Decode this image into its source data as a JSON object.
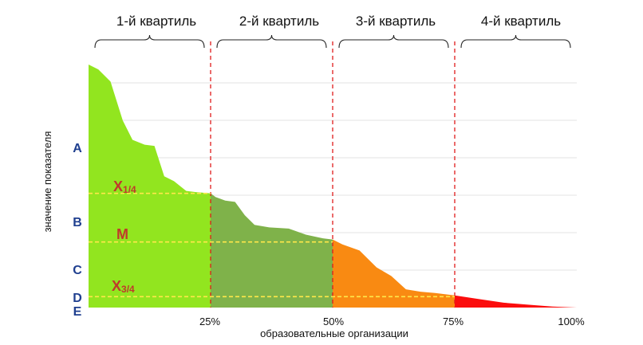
{
  "chart_data": {
    "type": "area",
    "quartile_labels": [
      "1-й квартиль",
      "2-й  квартиль",
      "3-й квартиль",
      "4-й квартиль"
    ],
    "xlabel": "образовательные организации",
    "ylabel": "значение показателя",
    "x_ticks": [
      "25%",
      "50%",
      "75%",
      "100%"
    ],
    "xlim": [
      0,
      100
    ],
    "ylim": [
      0,
      100
    ],
    "grid": true,
    "grades": [
      "A",
      "B",
      "C",
      "D",
      "E"
    ],
    "grade_levels": [
      65,
      35,
      15,
      4,
      0
    ],
    "quartile_markers": [
      {
        "main": "X",
        "sub": "1/4",
        "y": 47
      },
      {
        "main": "M",
        "sub": "",
        "y": 27
      },
      {
        "main": "X",
        "sub": "3/4",
        "y": 4.5
      }
    ],
    "segments": [
      {
        "color": "#92e51f",
        "x": [
          0,
          2,
          4.5,
          7,
          9,
          11.5,
          13.5,
          15.5,
          17.5,
          20,
          22,
          25
        ],
        "y": [
          100,
          98,
          93,
          77,
          69,
          67,
          66.5,
          54,
          52,
          48,
          47.5,
          47
        ]
      },
      {
        "color": "#7fb24a",
        "x": [
          25,
          26,
          28,
          30,
          32,
          34,
          37,
          41,
          44.5,
          48,
          50
        ],
        "y": [
          47,
          45.5,
          44,
          43.5,
          38,
          34,
          33,
          32.5,
          30,
          28.5,
          28
        ]
      },
      {
        "color": "#f98a12",
        "x": [
          50,
          52,
          55.5,
          57,
          59,
          62,
          65,
          68,
          71,
          73,
          75
        ],
        "y": [
          28,
          26,
          23.5,
          20.5,
          16.5,
          13,
          7.5,
          6.5,
          6,
          5.5,
          5
        ]
      },
      {
        "color": "#fb0d0d",
        "x": [
          75,
          80,
          85,
          90,
          95,
          100
        ],
        "y": [
          5,
          3.5,
          2,
          1.2,
          0.4,
          0
        ]
      }
    ],
    "divider_color": "#e01b1b",
    "marker_line_color": "#ffe84a"
  }
}
